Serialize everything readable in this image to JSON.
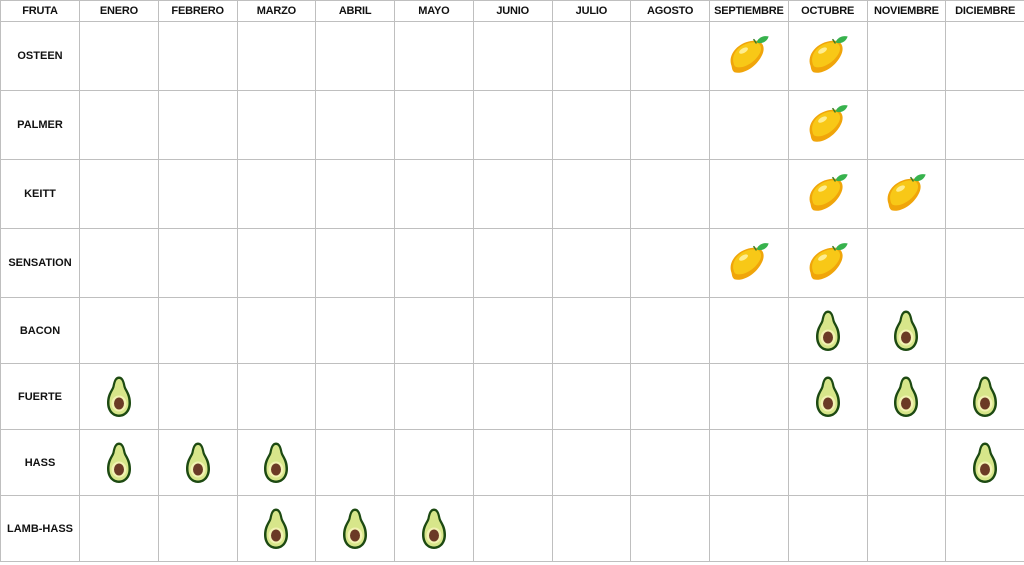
{
  "header": {
    "fruit_label": "FRUTA",
    "months": [
      "ENERO",
      "FEBRERO",
      "MARZO",
      "ABRIL",
      "MAYO",
      "JUNIO",
      "JULIO",
      "AGOSTO",
      "SEPTIEMBRE",
      "OCTUBRE",
      "NOVIEMBRE",
      "DICIEMBRE"
    ]
  },
  "rows": [
    {
      "name": "OSTEEN",
      "icon": "mango-icon",
      "months": [
        0,
        0,
        0,
        0,
        0,
        0,
        0,
        0,
        1,
        1,
        0,
        0
      ]
    },
    {
      "name": "PALMER",
      "icon": "mango-icon",
      "months": [
        0,
        0,
        0,
        0,
        0,
        0,
        0,
        0,
        0,
        1,
        0,
        0
      ]
    },
    {
      "name": "KEITT",
      "icon": "mango-icon",
      "months": [
        0,
        0,
        0,
        0,
        0,
        0,
        0,
        0,
        0,
        1,
        1,
        0
      ]
    },
    {
      "name": "SENSATION",
      "icon": "mango-icon",
      "months": [
        0,
        0,
        0,
        0,
        0,
        0,
        0,
        0,
        1,
        1,
        0,
        0
      ]
    },
    {
      "name": "BACON",
      "icon": "avocado-icon",
      "months": [
        0,
        0,
        0,
        0,
        0,
        0,
        0,
        0,
        0,
        1,
        1,
        0
      ]
    },
    {
      "name": "FUERTE",
      "icon": "avocado-icon",
      "months": [
        1,
        0,
        0,
        0,
        0,
        0,
        0,
        0,
        0,
        1,
        1,
        1
      ]
    },
    {
      "name": "HASS",
      "icon": "avocado-icon",
      "months": [
        1,
        1,
        1,
        0,
        0,
        0,
        0,
        0,
        0,
        0,
        0,
        1
      ]
    },
    {
      "name": "LAMB-HASS",
      "icon": "avocado-icon",
      "months": [
        0,
        0,
        1,
        1,
        1,
        0,
        0,
        0,
        0,
        0,
        0,
        0
      ]
    }
  ],
  "colors": {
    "mango_body": "#f8c817",
    "mango_shade": "#f0a50a",
    "leaf": "#37b24d",
    "avocado_skin": "#1d4a12",
    "avocado_flesh": "#d7e68a",
    "avocado_inner": "#f2f2b2",
    "avocado_pit": "#6b3a26",
    "grid": "#bfbfbf"
  }
}
